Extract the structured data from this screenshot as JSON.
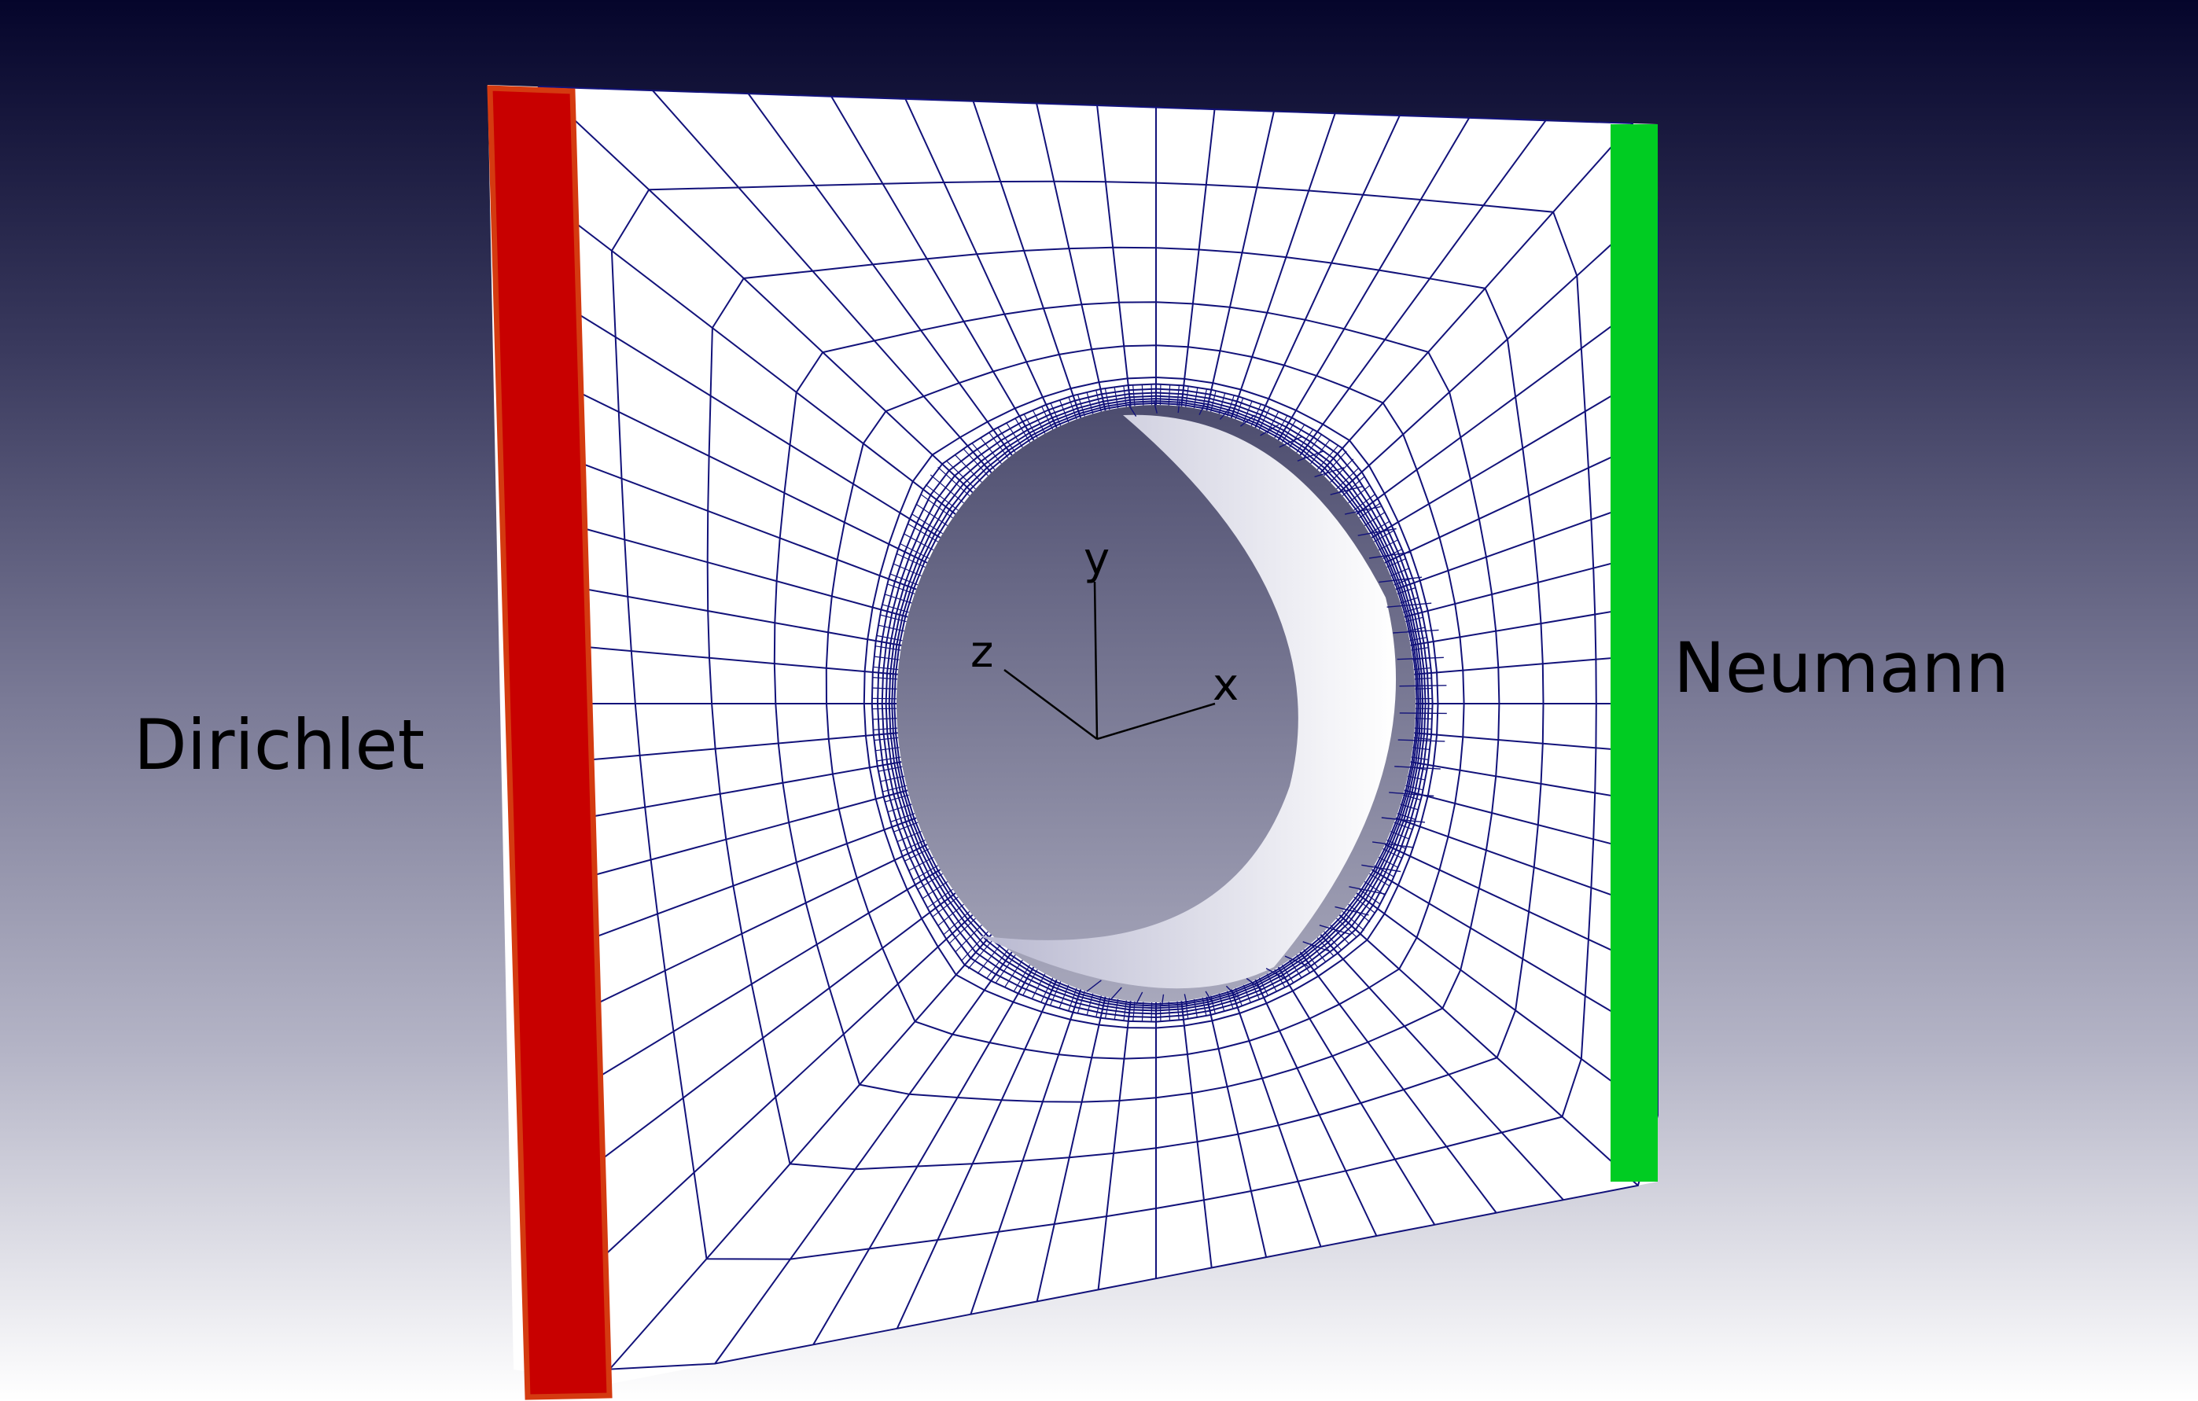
{
  "labels": {
    "left_boundary": "Dirichlet",
    "right_boundary": "Neumann"
  },
  "axes": {
    "x": "x",
    "y": "y",
    "z": "z"
  },
  "colors": {
    "dirichlet": "#c80000",
    "dirichlet_edge": "#d43a10",
    "neumann": "#00cc22",
    "mesh_line": "#12127a",
    "plate_fill": "#ffffff",
    "hole_inner": "#5a5a7a"
  }
}
